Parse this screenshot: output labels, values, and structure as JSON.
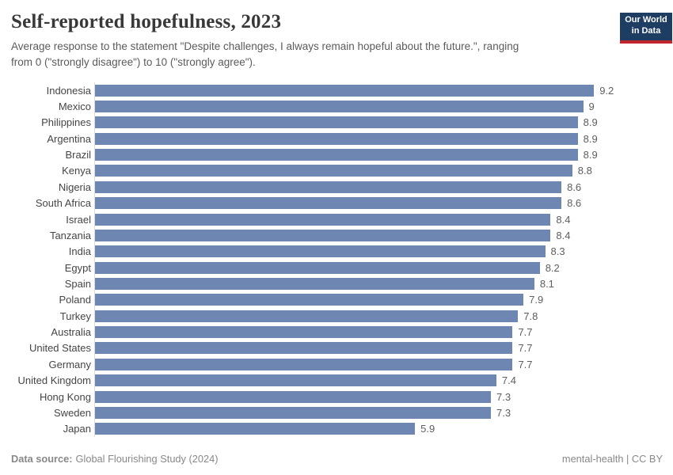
{
  "header": {
    "title": "Self-reported hopefulness, 2023",
    "subtitle_line1": "Average response to the statement \"Despite challenges, I always remain hopeful about the future.\", ranging",
    "subtitle_line2": "from 0 (\"strongly disagree\") to 10 (\"strongly agree\")."
  },
  "logo": {
    "line1": "Our World",
    "line2": "in Data"
  },
  "chart_data": {
    "type": "bar",
    "orientation": "horizontal",
    "title": "Self-reported hopefulness, 2023",
    "categories": [
      "Indonesia",
      "Mexico",
      "Philippines",
      "Argentina",
      "Brazil",
      "Kenya",
      "Nigeria",
      "South Africa",
      "Israel",
      "Tanzania",
      "India",
      "Egypt",
      "Spain",
      "Poland",
      "Turkey",
      "Australia",
      "United States",
      "Germany",
      "United Kingdom",
      "Hong Kong",
      "Sweden",
      "Japan"
    ],
    "values": [
      9.2,
      9,
      8.9,
      8.9,
      8.9,
      8.8,
      8.6,
      8.6,
      8.4,
      8.4,
      8.3,
      8.2,
      8.1,
      7.9,
      7.8,
      7.7,
      7.7,
      7.7,
      7.4,
      7.3,
      7.3,
      5.9
    ],
    "xlim": [
      0,
      10
    ],
    "grid": false,
    "value_labels_shown": true
  },
  "colors": {
    "bar": "#6d87b2",
    "axis_line": "#dcdcdc",
    "logo_bg": "#1d3d63",
    "logo_accent": "#c0272d"
  },
  "footer": {
    "datasource_label": "Data source:",
    "datasource_value": "Global Flourishing Study (2024)",
    "license": "mental-health | CC BY"
  }
}
